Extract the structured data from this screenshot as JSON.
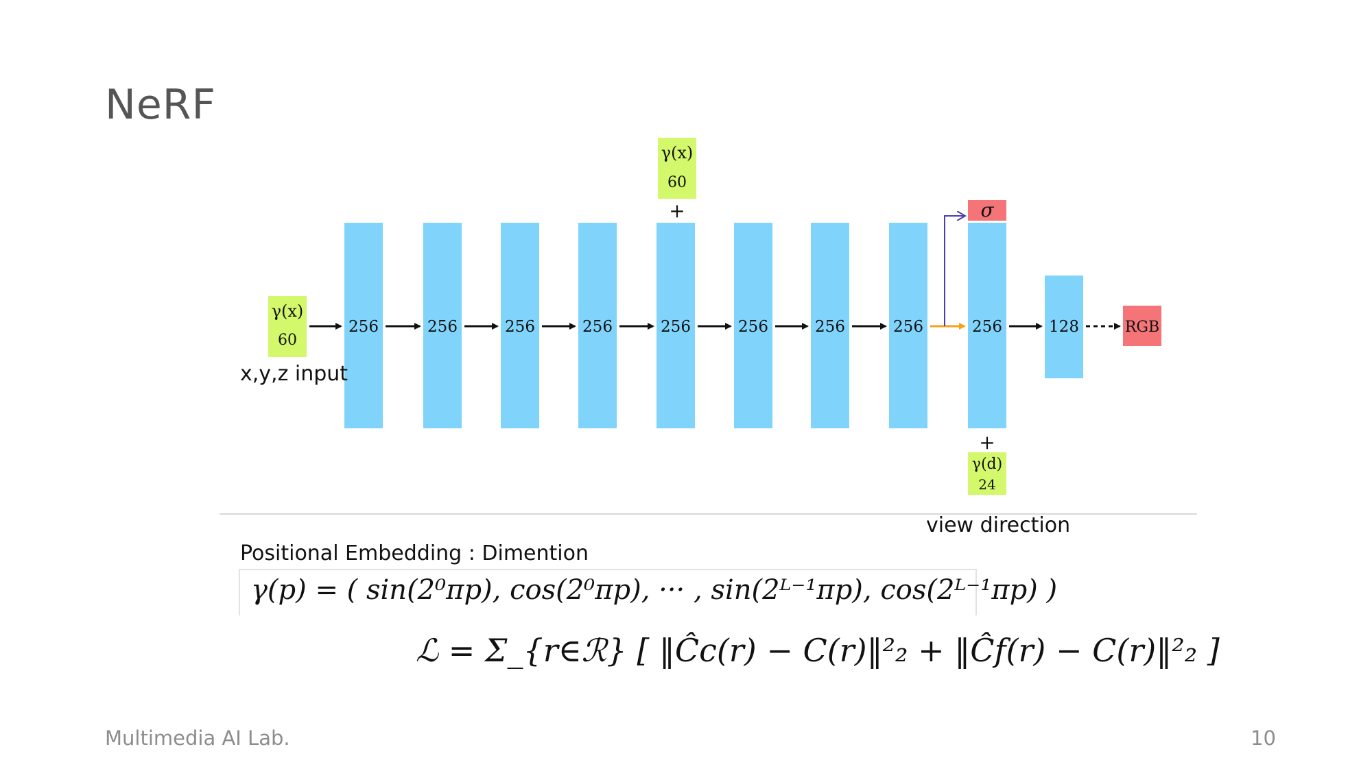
{
  "slide": {
    "title": "NeRF",
    "footer_lab": "Multimedia AI Lab.",
    "page_number": "10"
  },
  "diagram": {
    "input": {
      "label": "γ(x)",
      "dim": "60",
      "caption": "x,y,z input"
    },
    "skip_input": {
      "label": "γ(x)",
      "dim": "60",
      "plus": "+"
    },
    "view_input": {
      "label": "γ(d)",
      "dim": "24",
      "plus": "+",
      "caption": "view direction"
    },
    "layers": [
      "256",
      "256",
      "256",
      "256",
      "256",
      "256",
      "256",
      "256",
      "256",
      "128"
    ],
    "outputs": {
      "sigma": "σ",
      "rgb": "RGB"
    },
    "colors": {
      "layer": "#80d4fc",
      "input": "#d4f86c",
      "output": "#f47478",
      "density_arrow": "#4b3fa6",
      "view_arrow": "#f5a11b",
      "arrow": "#111111"
    }
  },
  "embedding": {
    "caption": "Positional Embedding : Dimention",
    "formula": "γ(p) = ( sin(2⁰πp), cos(2⁰πp), ··· , sin(2ᴸ⁻¹πp), cos(2ᴸ⁻¹πp) )"
  },
  "loss": {
    "formula": "ℒ = Σ_{r∈ℛ} [ ‖Ĉc(r) − C(r)‖²₂ + ‖Ĉf(r) − C(r)‖²₂ ]"
  }
}
